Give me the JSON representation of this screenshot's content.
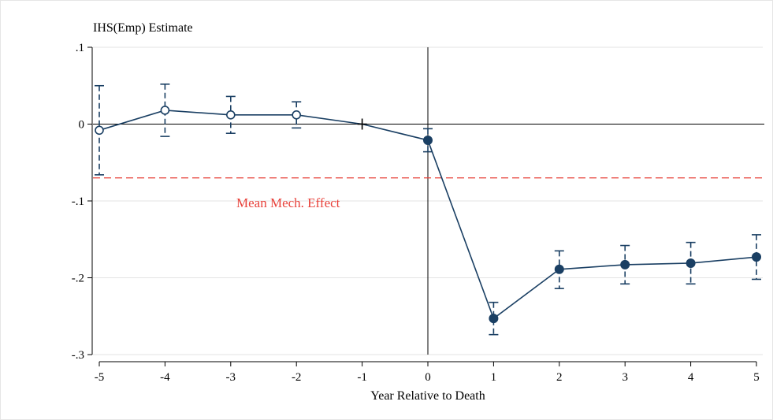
{
  "chart_data": {
    "type": "line",
    "title": "",
    "ylabel": "IHS(Emp) Estimate",
    "xlabel": "Year Relative to Death",
    "xlim": [
      -5,
      5
    ],
    "ylim": [
      -0.3,
      0.1
    ],
    "x_ticks": [
      -5,
      -4,
      -3,
      -2,
      -1,
      0,
      1,
      2,
      3,
      4,
      5
    ],
    "x_tick_labels": [
      "-5",
      "-4",
      "-3",
      "-2",
      "-1",
      "0",
      "1",
      "2",
      "3",
      "4",
      "5"
    ],
    "y_ticks": [
      0.1,
      0,
      -0.1,
      -0.2,
      -0.3
    ],
    "y_tick_labels": [
      ".1",
      "0",
      "-.1",
      "-.2",
      "-.3"
    ],
    "grid": true,
    "reference_lines": {
      "horizontal": 0,
      "vertical": 0
    },
    "mean_effect": {
      "value": -0.07,
      "label": "Mean Mech. Effect",
      "color": "#e8413a"
    },
    "series": [
      {
        "color": "#1a3f63",
        "points": [
          {
            "x": -5,
            "y": -0.008,
            "lo": -0.066,
            "hi": 0.05,
            "marker": "hollow"
          },
          {
            "x": -4,
            "y": 0.018,
            "lo": -0.016,
            "hi": 0.052,
            "marker": "hollow"
          },
          {
            "x": -3,
            "y": 0.012,
            "lo": -0.012,
            "hi": 0.036,
            "marker": "hollow"
          },
          {
            "x": -2,
            "y": 0.012,
            "lo": -0.005,
            "hi": 0.029,
            "marker": "hollow"
          },
          {
            "x": -1,
            "y": 0.0,
            "marker": "plus"
          },
          {
            "x": 0,
            "y": -0.021,
            "lo": -0.036,
            "hi": -0.006,
            "marker": "filled"
          },
          {
            "x": 1,
            "y": -0.253,
            "lo": -0.274,
            "hi": -0.232,
            "marker": "filled"
          },
          {
            "x": 2,
            "y": -0.189,
            "lo": -0.214,
            "hi": -0.165,
            "marker": "filled"
          },
          {
            "x": 3,
            "y": -0.183,
            "lo": -0.208,
            "hi": -0.158,
            "marker": "filled"
          },
          {
            "x": 4,
            "y": -0.181,
            "lo": -0.208,
            "hi": -0.154,
            "marker": "filled"
          },
          {
            "x": 5,
            "y": -0.173,
            "lo": -0.202,
            "hi": -0.144,
            "marker": "filled"
          }
        ]
      }
    ]
  }
}
